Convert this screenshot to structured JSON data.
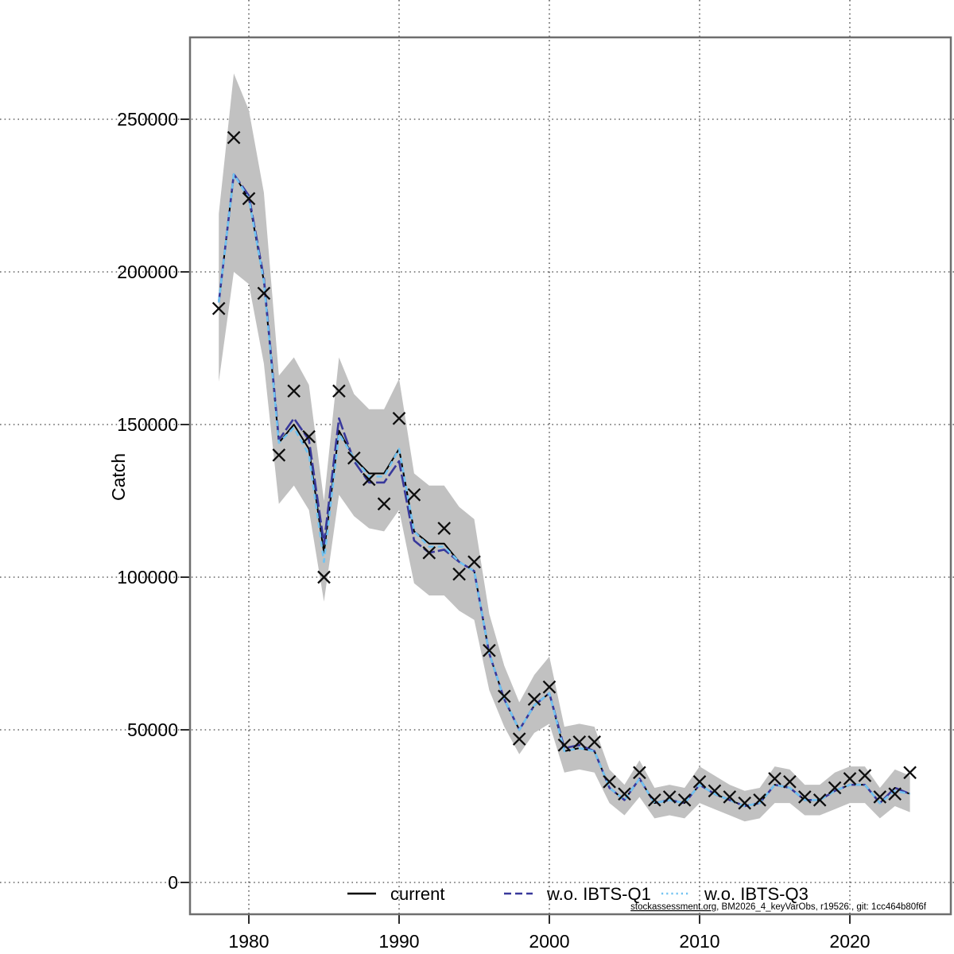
{
  "figure": {
    "background_color": "#ffffff",
    "band_color": "#c1c1c1",
    "border_color": "#6e6e6e",
    "grid_color": "#1a1a1a",
    "marker_color": "#0d0d0d"
  },
  "axes": {
    "y_label": "Catch",
    "y_tick_labels": [
      "0",
      "50000",
      "100000",
      "150000",
      "200000",
      "250000"
    ],
    "y_tick_values": [
      0,
      50000,
      100000,
      150000,
      200000,
      250000
    ],
    "x_tick_labels": [
      "1980",
      "1990",
      "2000",
      "2010",
      "2020"
    ],
    "x_tick_values": [
      1980,
      1990,
      2000,
      2010,
      2020
    ]
  },
  "legend": {
    "items": [
      {
        "label": "current",
        "color": "#000000",
        "style": "solid"
      },
      {
        "label": "w.o. IBTS-Q1",
        "color": "#38389b",
        "style": "dashed"
      },
      {
        "label": "w.o. IBTS-Q3",
        "color": "#72c3f1",
        "style": "dotted"
      }
    ]
  },
  "watermark": {
    "link_part": "stockassessment.org",
    "rest_part": ", BM2026_4_keyVarObs, r19526 , git: 1cc464b80f6f"
  },
  "chart_data": {
    "type": "line",
    "title": "",
    "xlabel": "",
    "ylabel": "Catch",
    "xlim": [
      1976.1,
      2026.7
    ],
    "ylim": [
      -10000,
      277000
    ],
    "grid": true,
    "legend_position": "bottom-center-inside",
    "x": [
      1978,
      1979,
      1980,
      1981,
      1982,
      1983,
      1984,
      1985,
      1986,
      1987,
      1988,
      1989,
      1990,
      1991,
      1992,
      1993,
      1994,
      1995,
      1996,
      1997,
      1998,
      1999,
      2000,
      2001,
      2002,
      2003,
      2004,
      2005,
      2006,
      2007,
      2008,
      2009,
      2010,
      2011,
      2012,
      2013,
      2014,
      2015,
      2016,
      2017,
      2018,
      2019,
      2020,
      2021,
      2022,
      2023,
      2024
    ],
    "series": [
      {
        "name": "current",
        "color": "#000000",
        "style": "solid",
        "values": [
          190000,
          232000,
          224000,
          197000,
          144000,
          150000,
          142000,
          108000,
          148000,
          139000,
          134000,
          134000,
          142000,
          115000,
          111000,
          111000,
          105000,
          102000,
          75000,
          60000,
          50000,
          58000,
          62000,
          43000,
          44000,
          43000,
          31000,
          27000,
          34000,
          26000,
          27000,
          26000,
          32000,
          29000,
          27000,
          25000,
          26000,
          32000,
          31000,
          27000,
          27000,
          30000,
          32000,
          32000,
          26000,
          31000,
          29000
        ]
      },
      {
        "name": "w.o. IBTS-Q1",
        "color": "#38389b",
        "style": "dashed",
        "values": [
          190000,
          232000,
          225000,
          198000,
          145000,
          152000,
          145000,
          111000,
          152000,
          138000,
          131000,
          131000,
          138000,
          112000,
          108000,
          109000,
          105000,
          102000,
          75000,
          60000,
          50000,
          58000,
          62000,
          44000,
          45000,
          43000,
          31000,
          27000,
          34000,
          26000,
          27000,
          26000,
          32000,
          29000,
          27000,
          25000,
          26000,
          32000,
          31000,
          27000,
          27000,
          30000,
          32000,
          32000,
          26000,
          31000,
          29000
        ]
      },
      {
        "name": "w.o. IBTS-Q3",
        "color": "#72c3f1",
        "style": "dotted",
        "values": [
          190000,
          232000,
          224000,
          197000,
          144000,
          149000,
          140000,
          105000,
          147000,
          139000,
          133000,
          133000,
          142000,
          115000,
          110000,
          110000,
          105000,
          102000,
          75000,
          60000,
          50000,
          58000,
          62000,
          43000,
          44000,
          43000,
          31000,
          27000,
          34000,
          26000,
          27000,
          26000,
          32000,
          29000,
          27000,
          25000,
          26000,
          32000,
          31000,
          27000,
          27000,
          30000,
          32000,
          32000,
          26000,
          30000,
          29000
        ]
      },
      {
        "name": "observed catch",
        "marker": "x",
        "color": "#0d0d0d",
        "values": [
          188000,
          244000,
          224000,
          193000,
          140000,
          161000,
          146000,
          100000,
          161000,
          139000,
          132000,
          124000,
          152000,
          127000,
          108000,
          116000,
          101000,
          105000,
          76000,
          61000,
          47000,
          60000,
          64000,
          45000,
          46000,
          46000,
          33000,
          29000,
          36000,
          27000,
          28000,
          27000,
          33000,
          30000,
          28000,
          26000,
          27000,
          34000,
          33000,
          28000,
          27000,
          31000,
          34000,
          35000,
          28000,
          29000,
          36000
        ]
      }
    ],
    "band": {
      "name": "confidence band",
      "color": "#c1c1c1",
      "lo": [
        164000,
        200000,
        196000,
        170000,
        124000,
        130000,
        122000,
        92000,
        127000,
        120000,
        116000,
        115000,
        122000,
        98000,
        94000,
        94000,
        89000,
        86000,
        63000,
        51000,
        42000,
        49000,
        52000,
        36000,
        37000,
        36000,
        26000,
        22000,
        28000,
        21000,
        22000,
        21000,
        26000,
        24000,
        22000,
        20000,
        21000,
        26000,
        26000,
        22000,
        22000,
        24000,
        26000,
        26000,
        21000,
        25000,
        23000
      ],
      "hi": [
        219000,
        265000,
        253000,
        226000,
        166000,
        172000,
        163000,
        125000,
        172000,
        160000,
        155000,
        155000,
        165000,
        134000,
        130000,
        130000,
        123000,
        119000,
        88000,
        71000,
        59000,
        68000,
        74000,
        51000,
        52000,
        51000,
        37000,
        32000,
        40000,
        31000,
        32000,
        31000,
        38000,
        35000,
        32000,
        30000,
        31000,
        38000,
        37000,
        32000,
        32000,
        36000,
        38000,
        38000,
        31000,
        37000,
        35000
      ]
    }
  }
}
